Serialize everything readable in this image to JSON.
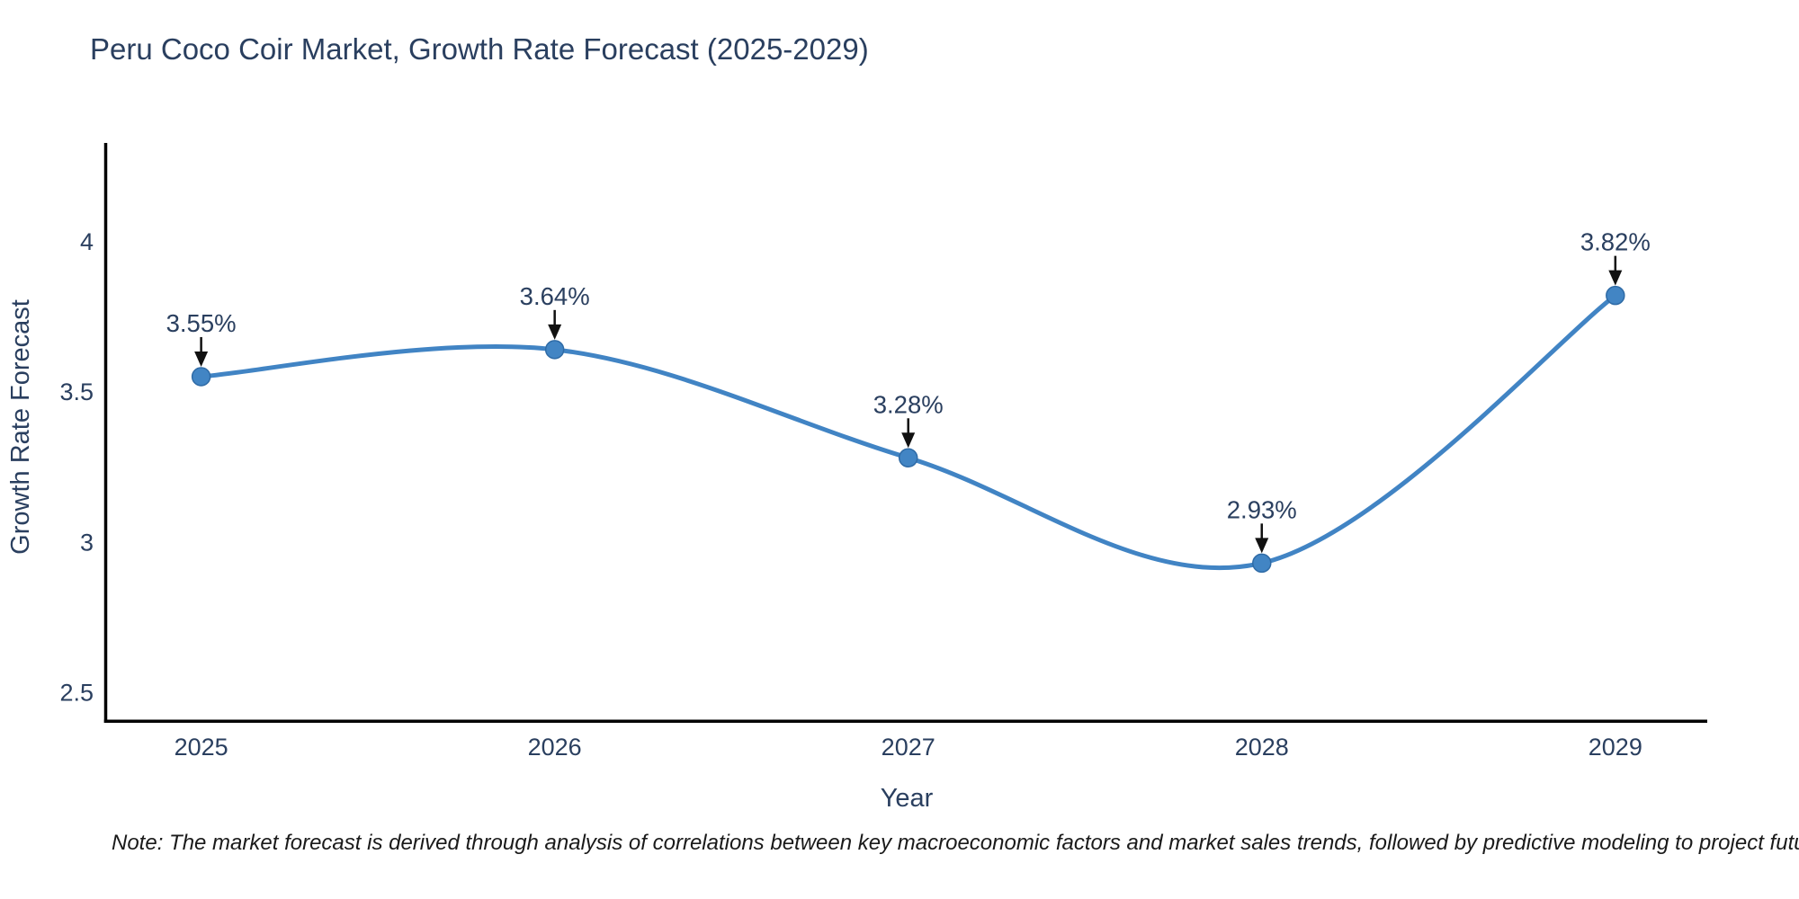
{
  "chart_data": {
    "type": "line",
    "title": "Peru Coco Coir Market, Growth Rate Forecast (2025-2029)",
    "xlabel": "Year",
    "ylabel": "Growth Rate Forecast",
    "categories": [
      2025,
      2026,
      2027,
      2028,
      2029
    ],
    "values": [
      3.55,
      3.64,
      3.28,
      2.93,
      3.82
    ],
    "point_labels": [
      "3.55%",
      "3.64%",
      "3.28%",
      "2.93%",
      "3.82%"
    ],
    "x_tick_labels": [
      "2025",
      "2026",
      "2027",
      "2028",
      "2029"
    ],
    "y_ticks": [
      2.5,
      3.0,
      3.5,
      4.0
    ],
    "y_tick_labels": [
      "2.5",
      "3",
      "3.5",
      "4"
    ],
    "xlim": [
      2024.73,
      2029.26
    ],
    "ylim": [
      2.405,
      4.327
    ],
    "grid": false,
    "legend_position": "none",
    "line_style": "spline",
    "colors": {
      "line": "#4184c4",
      "marker_fill": "#4285c4",
      "marker_edge": "#2f6ba6",
      "axis_line": "#000000",
      "chart_text": "#2a3f5f",
      "annotation_text": "#2a3f5f",
      "annotation_arrow": "#111111",
      "note_text": "#1a1a1a",
      "background": "#ffffff"
    }
  },
  "note": {
    "text": "Note: The market forecast is derived through analysis of correlations between key macroeconomic factors and market sales trends, followed by predictive modeling to project future sales"
  }
}
